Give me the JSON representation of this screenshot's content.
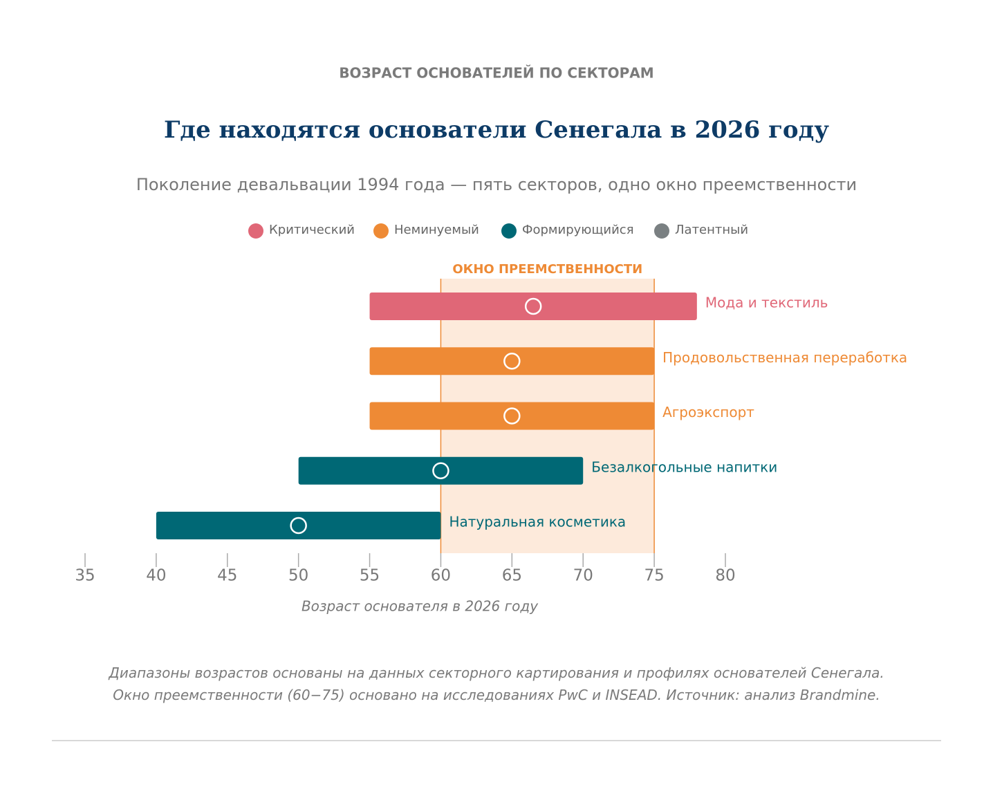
{
  "chart_data": {
    "type": "range_bar",
    "kicker": "ВОЗРАСТ ОСНОВАТЕЛЕЙ ПО СЕКТОРАМ",
    "title": "Где находятся основатели Сенегала в 2026 году",
    "subtitle": "Поколение девальвации 1994 года — пять секторов, одно окно преемственности",
    "legend": [
      {
        "name": "Критический",
        "color": "#e06777"
      },
      {
        "name": "Неминуемый",
        "color": "#ee8a35"
      },
      {
        "name": "Формирующийся",
        "color": "#006875"
      },
      {
        "name": "Латентный",
        "color": "#7a8082"
      }
    ],
    "window": {
      "label": "ОКНО ПРЕЕМСТВЕННОСТИ",
      "range": [
        60,
        75
      ],
      "color": "#fdeadb",
      "edge_color": "#ee8a35"
    },
    "bars": [
      {
        "name": "Мода и текстиль",
        "low": 55,
        "high": 78,
        "mid": 66.5,
        "color": "#e06777"
      },
      {
        "name": "Продовольственная переработка",
        "low": 55,
        "high": 75,
        "mid": 65,
        "color": "#ee8a35"
      },
      {
        "name": "Агроэкспорт",
        "low": 55,
        "high": 75,
        "mid": 65,
        "color": "#ee8a35"
      },
      {
        "name": "Безалкогольные напитки",
        "low": 50,
        "high": 70,
        "mid": 60,
        "color": "#006875"
      },
      {
        "name": "Натуральная косметика",
        "low": 40,
        "high": 60,
        "mid": 50,
        "color": "#006875"
      }
    ],
    "xlim": [
      35,
      80
    ],
    "xticks": [
      35,
      40,
      45,
      50,
      55,
      60,
      65,
      70,
      75,
      80
    ],
    "xlabel": "Возраст основателя в 2026 году",
    "footnote": "Диапазоны возрастов основаны на данных секторного картирования и профилях основателей Сенегала. Окно преемственности (60−75) основано на исследованиях PwC и INSEAD. Источник: анализ Brandmine."
  }
}
